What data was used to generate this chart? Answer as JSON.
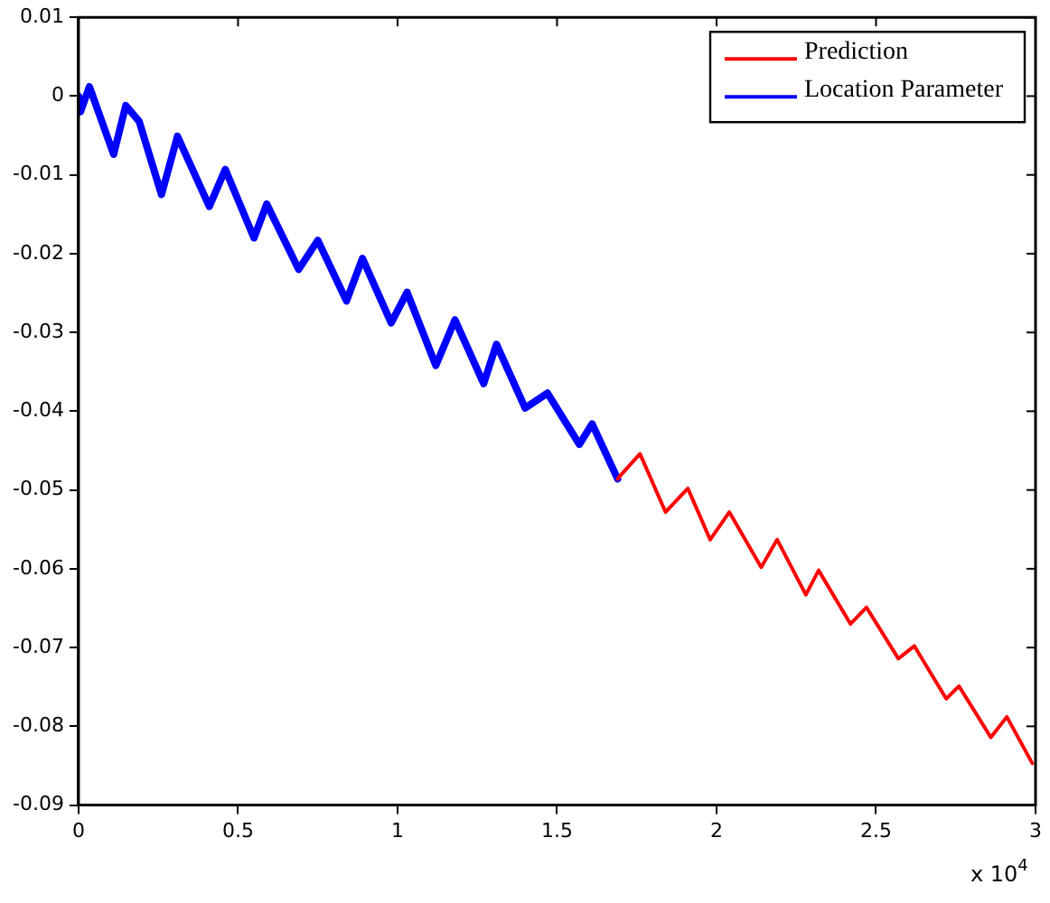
{
  "chart_data": {
    "type": "line",
    "xlim": [
      0,
      3
    ],
    "xticks": [
      0,
      0.5,
      1,
      1.5,
      2,
      2.5,
      3
    ],
    "ylim": [
      -0.09,
      0.01
    ],
    "yticks": [
      -0.09,
      -0.08,
      -0.07,
      -0.06,
      -0.05,
      -0.04,
      -0.03,
      -0.02,
      -0.01,
      0,
      0.01
    ],
    "grid": false,
    "legend": "top right",
    "marker": "none",
    "line_style": "solid",
    "annotations": [
      "x 10$^{4}$"
    ],
    "series": [
      {
        "name": "Prediction",
        "color": "#ff0000",
        "x": [
          1.69,
          1.7,
          1.76,
          1.84,
          1.91,
          1.98,
          2.04,
          2.14,
          2.19,
          2.28,
          2.32,
          2.42,
          2.47,
          2.57,
          2.62,
          2.72,
          2.76,
          2.86,
          2.91,
          2.99
        ],
        "values": [
          -0.0486,
          -0.0481,
          -0.0454,
          -0.0528,
          -0.0498,
          -0.0563,
          -0.0528,
          -0.0598,
          -0.0563,
          -0.0633,
          -0.0602,
          -0.067,
          -0.0649,
          -0.0714,
          -0.0698,
          -0.0765,
          -0.0749,
          -0.0814,
          -0.0788,
          -0.0847
        ]
      },
      {
        "name": "Location Parameter",
        "color": "#0000ff",
        "x": [
          0,
          0.006,
          0.034,
          0.11,
          0.148,
          0.19,
          0.26,
          0.31,
          0.41,
          0.46,
          0.55,
          0.59,
          0.69,
          0.75,
          0.84,
          0.89,
          0.98,
          1.03,
          1.12,
          1.18,
          1.27,
          1.31,
          1.4,
          1.47,
          1.57,
          1.61,
          1.69
        ],
        "values": [
          0,
          -0.002,
          0.0012,
          -0.0074,
          -0.0012,
          -0.0032,
          -0.0125,
          -0.0051,
          -0.014,
          -0.0093,
          -0.018,
          -0.0137,
          -0.022,
          -0.0183,
          -0.026,
          -0.0206,
          -0.0288,
          -0.0249,
          -0.0342,
          -0.0284,
          -0.0365,
          -0.0315,
          -0.0396,
          -0.0377,
          -0.0442,
          -0.0416,
          -0.0486
        ]
      }
    ]
  }
}
